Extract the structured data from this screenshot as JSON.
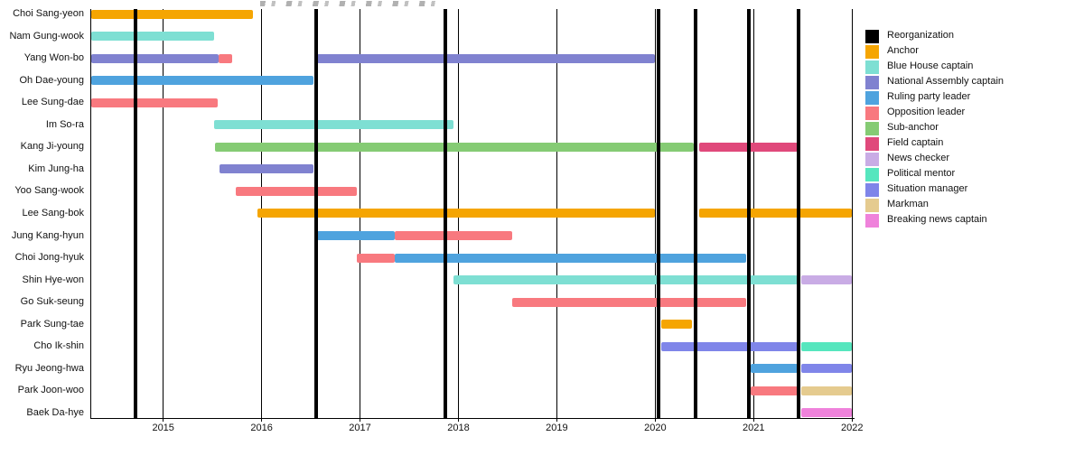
{
  "chart_data": {
    "type": "bar",
    "subtype": "gantt-timeline",
    "title": "",
    "xlabel": "",
    "ylabel": "",
    "grid": "vertical-year-lines",
    "x_axis": {
      "range": [
        2014.27,
        2022.0
      ],
      "ticks": [
        "2015",
        "2016",
        "2017",
        "2018",
        "2019",
        "2020",
        "2021",
        "2022"
      ],
      "tick_values": [
        2015,
        2016,
        2017,
        2018,
        2019,
        2020,
        2021,
        2022
      ]
    },
    "reorganization_lines": [
      2014.72,
      2016.55,
      2017.87,
      2020.03,
      2020.41,
      2020.95,
      2021.46
    ],
    "legend": {
      "position": "right",
      "entries": [
        {
          "key": "reorganization",
          "label": "Reorganization",
          "color": "#000000"
        },
        {
          "key": "anchor",
          "label": "Anchor",
          "color": "#F5A502"
        },
        {
          "key": "blue_house_captain",
          "label": "Blue House captain",
          "color": "#7EDFD3"
        },
        {
          "key": "national_assembly_captain",
          "label": "National Assembly captain",
          "color": "#8082D0"
        },
        {
          "key": "ruling_party_leader",
          "label": "Ruling party leader",
          "color": "#4FA3DE"
        },
        {
          "key": "opposition_leader",
          "label": "Opposition leader",
          "color": "#F8797F"
        },
        {
          "key": "sub_anchor",
          "label": "Sub-anchor",
          "color": "#85CB74"
        },
        {
          "key": "field_captain",
          "label": "Field captain",
          "color": "#E0497B"
        },
        {
          "key": "news_checker",
          "label": "News checker",
          "color": "#C9ACE5"
        },
        {
          "key": "political_mentor",
          "label": "Political mentor",
          "color": "#56E6BE"
        },
        {
          "key": "situation_manager",
          "label": "Situation manager",
          "color": "#7F85E9"
        },
        {
          "key": "markman",
          "label": "Markman",
          "color": "#E5CB8F"
        },
        {
          "key": "breaking_news_captain",
          "label": "Breaking news captain",
          "color": "#EF82DB"
        }
      ]
    },
    "rows": [
      {
        "name": "Choi Sang-yeon",
        "segments": [
          {
            "role": "anchor",
            "start": 2014.27,
            "end": 2015.91
          }
        ]
      },
      {
        "name": "Nam Gung-wook",
        "segments": [
          {
            "role": "blue_house_captain",
            "start": 2014.27,
            "end": 2015.52
          }
        ]
      },
      {
        "name": "Yang Won-bo",
        "segments": [
          {
            "role": "national_assembly_captain",
            "start": 2014.27,
            "end": 2015.56
          },
          {
            "role": "opposition_leader",
            "start": 2015.56,
            "end": 2015.7
          },
          {
            "role": "national_assembly_captain",
            "start": 2016.56,
            "end": 2020.0
          }
        ]
      },
      {
        "name": "Oh Dae-young",
        "segments": [
          {
            "role": "ruling_party_leader",
            "start": 2014.27,
            "end": 2016.53
          }
        ]
      },
      {
        "name": "Lee Sung-dae",
        "segments": [
          {
            "role": "opposition_leader",
            "start": 2014.27,
            "end": 2015.55
          }
        ]
      },
      {
        "name": "Im So-ra",
        "segments": [
          {
            "role": "blue_house_captain",
            "start": 2015.52,
            "end": 2017.95
          }
        ]
      },
      {
        "name": "Kang Ji-young",
        "segments": [
          {
            "role": "sub_anchor",
            "start": 2015.53,
            "end": 2020.39
          },
          {
            "role": "field_captain",
            "start": 2020.45,
            "end": 2021.45
          }
        ]
      },
      {
        "name": "Kim Jung-ha",
        "segments": [
          {
            "role": "national_assembly_captain",
            "start": 2015.57,
            "end": 2016.53
          }
        ]
      },
      {
        "name": "Yoo Sang-wook",
        "segments": [
          {
            "role": "opposition_leader",
            "start": 2015.74,
            "end": 2016.97
          }
        ]
      },
      {
        "name": "Lee Sang-bok",
        "segments": [
          {
            "role": "anchor",
            "start": 2015.96,
            "end": 2020.0
          },
          {
            "role": "anchor",
            "start": 2020.45,
            "end": 2022.0
          }
        ]
      },
      {
        "name": "Jung Kang-hyun",
        "segments": [
          {
            "role": "ruling_party_leader",
            "start": 2016.56,
            "end": 2017.35
          },
          {
            "role": "opposition_leader",
            "start": 2017.35,
            "end": 2018.55
          }
        ]
      },
      {
        "name": "Choi Jong-hyuk",
        "segments": [
          {
            "role": "opposition_leader",
            "start": 2016.97,
            "end": 2017.35
          },
          {
            "role": "ruling_party_leader",
            "start": 2017.35,
            "end": 2020.92
          }
        ]
      },
      {
        "name": "Shin Hye-won",
        "segments": [
          {
            "role": "blue_house_captain",
            "start": 2017.95,
            "end": 2021.45
          },
          {
            "role": "news_checker",
            "start": 2021.48,
            "end": 2022.0
          }
        ]
      },
      {
        "name": "Go Suk-seung",
        "segments": [
          {
            "role": "opposition_leader",
            "start": 2018.55,
            "end": 2020.92
          }
        ]
      },
      {
        "name": "Park Sung-tae",
        "segments": [
          {
            "role": "anchor",
            "start": 2020.06,
            "end": 2020.37
          }
        ]
      },
      {
        "name": "Cho Ik-shin",
        "segments": [
          {
            "role": "situation_manager",
            "start": 2020.06,
            "end": 2021.45
          },
          {
            "role": "political_mentor",
            "start": 2021.48,
            "end": 2022.0
          }
        ]
      },
      {
        "name": "Ryu Jeong-hwa",
        "segments": [
          {
            "role": "ruling_party_leader",
            "start": 2020.97,
            "end": 2021.45
          },
          {
            "role": "situation_manager",
            "start": 2021.48,
            "end": 2022.0
          }
        ]
      },
      {
        "name": "Park Joon-woo",
        "segments": [
          {
            "role": "opposition_leader",
            "start": 2020.97,
            "end": 2021.45
          },
          {
            "role": "markman",
            "start": 2021.48,
            "end": 2022.0
          }
        ]
      },
      {
        "name": "Baek Da-hye",
        "segments": [
          {
            "role": "breaking_news_captain",
            "start": 2021.48,
            "end": 2022.0
          }
        ]
      }
    ]
  }
}
